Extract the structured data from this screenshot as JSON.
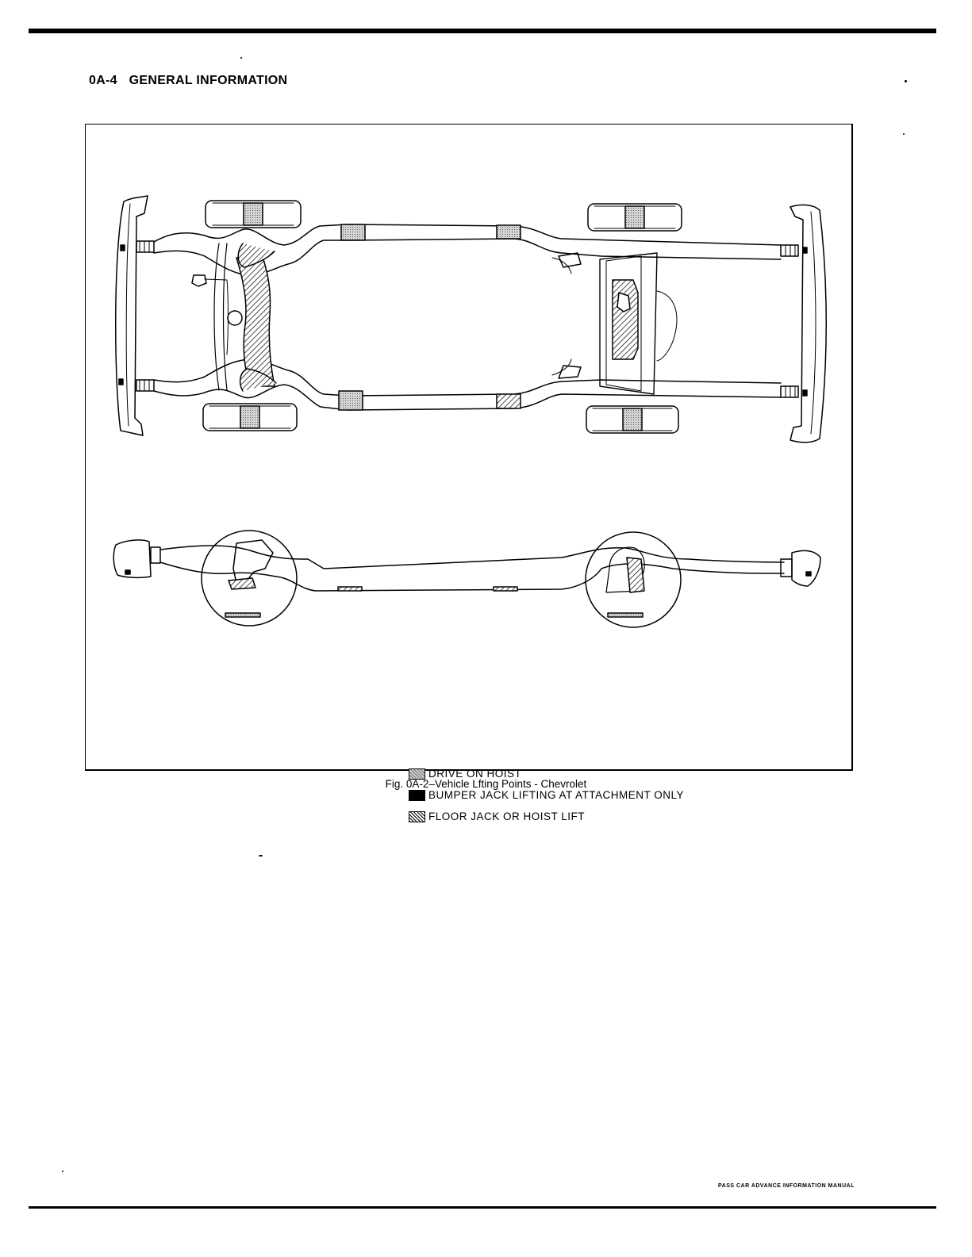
{
  "header": {
    "page_number": "0A-4",
    "section_title": "GENERAL INFORMATION"
  },
  "figure": {
    "caption": "Fig. 0A-2–Vehicle Lfting Points - Chevrolet",
    "legend": [
      {
        "key": "drive",
        "label": "DRIVE ON HOIST"
      },
      {
        "key": "bumper",
        "label": "BUMPER JACK LIFTING AT ATTACHMENT ONLY"
      },
      {
        "key": "floor",
        "label": "FLOOR JACK OR HOIST LIFT"
      }
    ]
  },
  "footer": {
    "manual_name": "PASS CAR ADVANCE INFORMATION MANUAL"
  },
  "colors": {
    "ink": "#000000",
    "paper": "#ffffff",
    "drive_fill": "#bdbdbd"
  }
}
